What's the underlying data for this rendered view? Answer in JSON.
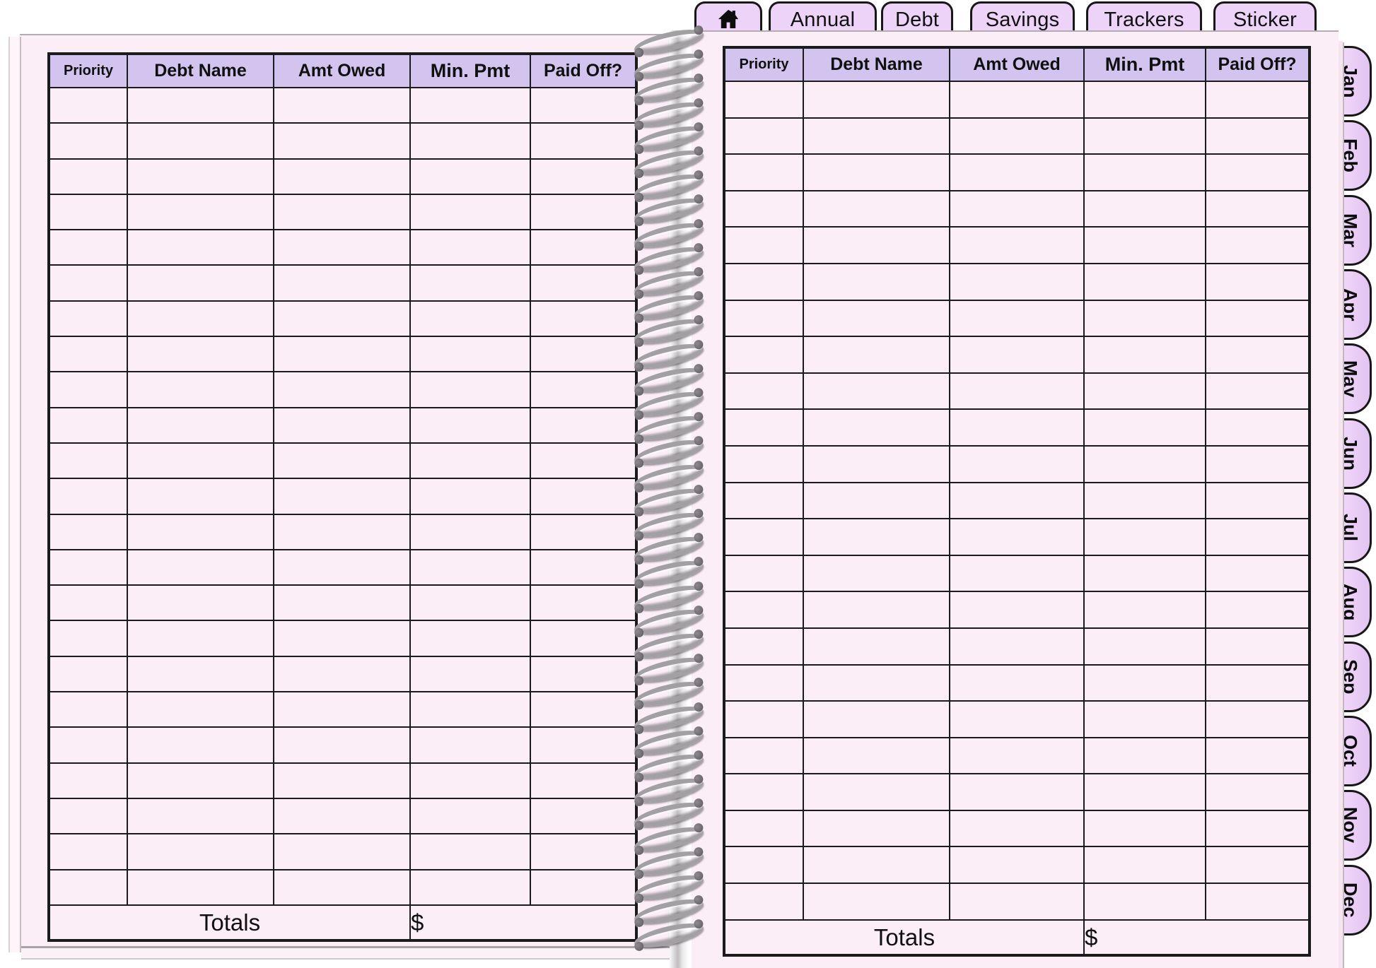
{
  "top_tabs": {
    "home_icon": "home-icon",
    "items": [
      {
        "label": "Annual"
      },
      {
        "label": "Debt"
      },
      {
        "label": "Savings"
      },
      {
        "label": "Trackers"
      },
      {
        "label": "Sticker"
      }
    ]
  },
  "month_tabs": [
    "Jan",
    "Feb",
    "Mar",
    "Apr",
    "May",
    "Jun",
    "Jul",
    "Aug",
    "Sep",
    "Oct",
    "Nov",
    "Dec"
  ],
  "pages": {
    "left": {
      "columns": [
        "Priority",
        "Debt Name",
        "Amt Owed",
        "Min. Pmt",
        "Paid Off?"
      ],
      "row_count": 23,
      "totals_label": "Totals",
      "currency_symbol": "$"
    },
    "right": {
      "columns": [
        "Priority",
        "Debt Name",
        "Amt Owed",
        "Min. Pmt",
        "Paid Off?"
      ],
      "row_count": 23,
      "totals_label": "Totals",
      "currency_symbol": "$"
    }
  },
  "colors": {
    "page_fill": "#fceef7",
    "header_fill": "#d3c4ef",
    "tab_fill": "#eed3f9",
    "table_border": "#1b1b1b",
    "spiral_metal": "#a3a0a4"
  },
  "decor": {
    "spiral_loop_count": 38
  }
}
